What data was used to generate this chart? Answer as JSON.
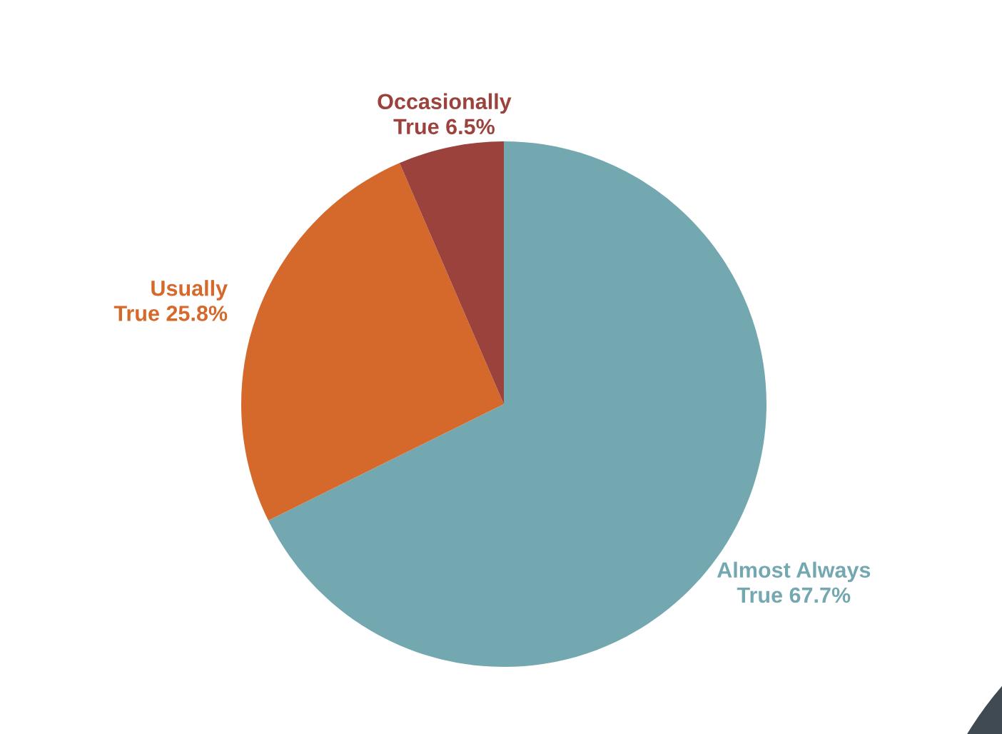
{
  "chart_data": {
    "type": "pie",
    "categories": [
      "Almost Always True",
      "Usually True",
      "Occasionally True"
    ],
    "values": [
      67.7,
      25.8,
      6.5
    ],
    "value_labels": [
      "67.7%",
      "25.8%",
      "6.5%"
    ],
    "colors": [
      "#74a8b1",
      "#d4692b",
      "#9c423c"
    ],
    "legend": false
  }
}
